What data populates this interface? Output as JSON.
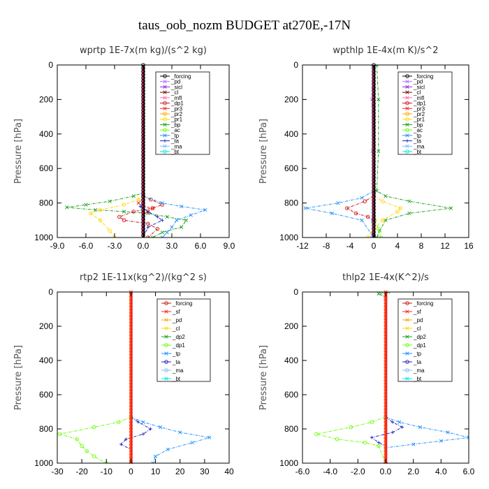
{
  "figure_title": "taus_oob_nozm  BUDGET at270E,-17N",
  "chart_data": [
    {
      "type": "line",
      "title": "wprtp  1E-7x(m kg)/(s^2 kg)",
      "ylabel": "Pressure [hPa]",
      "xlim": [
        -9,
        9
      ],
      "ylim": [
        1000,
        0
      ],
      "xticks": [
        "-9.0",
        "-6.0",
        "-3.0",
        "0.0",
        "3.0",
        "6.0",
        "9.0"
      ],
      "yticks": [
        "0",
        "200",
        "400",
        "600",
        "800",
        "1000"
      ],
      "legend": [
        "_forcing",
        "_pd",
        "_sicl",
        "_cl",
        "_mfl",
        "_dp1",
        "_pr3",
        "_pr2",
        "_pr1",
        "_bp",
        "_ac",
        "_tp",
        "_ta",
        "_ma",
        "_bt"
      ],
      "legend_colors": [
        "#000000",
        "#b070ff",
        "#8a2be2",
        "#800000",
        "#ff69b4",
        "#d01010",
        "#ff2020",
        "#ffa500",
        "#ffd700",
        "#1aa01a",
        "#66ff00",
        "#1e90ff",
        "#2020c0",
        "#7fb8ff",
        "#00e5e5"
      ],
      "series": [
        {
          "name": "_bp",
          "color": "#1aa01a",
          "marker": "x",
          "points": [
            [
              0,
              700
            ],
            [
              0,
              740
            ],
            [
              -1.0,
              760
            ],
            [
              -3.5,
              790
            ],
            [
              -6.0,
              810
            ],
            [
              -8.0,
              825
            ],
            [
              -5.0,
              840
            ],
            [
              -2.0,
              850
            ],
            [
              0.5,
              860
            ],
            [
              2.5,
              880
            ],
            [
              4.5,
              900
            ],
            [
              4.0,
              940
            ],
            [
              2.0,
              970
            ],
            [
              1.0,
              1000
            ]
          ]
        },
        {
          "name": "_pr1",
          "color": "#ffd700",
          "marker": "o",
          "points": [
            [
              0,
              750
            ],
            [
              -0.5,
              780
            ],
            [
              -2.0,
              810
            ],
            [
              -4.5,
              840
            ],
            [
              -5.5,
              860
            ],
            [
              -4.5,
              900
            ],
            [
              -3.5,
              960
            ],
            [
              -3.0,
              1000
            ]
          ]
        },
        {
          "name": "_dp1",
          "color": "#d01010",
          "marker": "o",
          "points": [
            [
              0,
              760
            ],
            [
              0.8,
              780
            ],
            [
              2.0,
              810
            ],
            [
              1.0,
              830
            ],
            [
              -1.0,
              850
            ],
            [
              -2.5,
              880
            ],
            [
              -2.0,
              900
            ],
            [
              0.5,
              920
            ],
            [
              1.5,
              950
            ],
            [
              0.5,
              1000
            ]
          ]
        },
        {
          "name": "_pr3",
          "color": "#ff2020",
          "marker": "x",
          "points": [
            [
              0,
              770
            ],
            [
              -0.5,
              800
            ],
            [
              0,
              820
            ],
            [
              1.0,
              830
            ],
            [
              0.5,
              850
            ],
            [
              0,
              870
            ]
          ]
        },
        {
          "name": "_ta",
          "color": "#2020c0",
          "marker": "+",
          "points": [
            [
              0,
              790
            ],
            [
              -0.3,
              820
            ],
            [
              0.5,
              850
            ],
            [
              1.5,
              880
            ],
            [
              2.0,
              900
            ],
            [
              0.5,
              940
            ],
            [
              0,
              1000
            ]
          ]
        },
        {
          "name": "_tp",
          "color": "#1e90ff",
          "marker": "x",
          "points": [
            [
              0,
              760
            ],
            [
              2.0,
              800
            ],
            [
              4.0,
              820
            ],
            [
              6.5,
              840
            ],
            [
              5.0,
              870
            ],
            [
              3.5,
              900
            ],
            [
              3.0,
              940
            ],
            [
              2.5,
              970
            ],
            [
              2.0,
              1000
            ]
          ]
        }
      ]
    },
    {
      "type": "line",
      "title": "wpthlp  1E-4x(m K)/s^2",
      "ylabel": "Pressure [hPa]",
      "xlim": [
        -12,
        16
      ],
      "ylim": [
        1000,
        0
      ],
      "xticks": [
        "-12",
        "-8",
        "-4",
        "0",
        "4",
        "8",
        "12",
        "16"
      ],
      "yticks": [
        "0",
        "200",
        "400",
        "600",
        "800",
        "1000"
      ],
      "legend": [
        "_forcing",
        "_pd",
        "_sicl",
        "_cl",
        "_mfl",
        "_dp1",
        "_pr3",
        "_pr2",
        "_pr1",
        "_bp",
        "_ac",
        "_tp",
        "_ta",
        "_ma",
        "_bt"
      ],
      "legend_colors": [
        "#000000",
        "#b070ff",
        "#8a2be2",
        "#800000",
        "#ff69b4",
        "#d01010",
        "#ff2020",
        "#ffa500",
        "#ffd700",
        "#1aa01a",
        "#66ff00",
        "#1e90ff",
        "#2020c0",
        "#7fb8ff",
        "#00e5e5"
      ],
      "series": [
        {
          "name": "_bp",
          "color": "#1aa01a",
          "marker": "x",
          "points": [
            [
              0.5,
              0
            ],
            [
              0.8,
              200
            ],
            [
              0.8,
              500
            ],
            [
              0.5,
              730
            ],
            [
              2.0,
              760
            ],
            [
              6.0,
              790
            ],
            [
              13.0,
              830
            ],
            [
              6.0,
              860
            ],
            [
              2.0,
              900
            ],
            [
              1.0,
              960
            ],
            [
              0.5,
              1000
            ]
          ]
        },
        {
          "name": "_tp",
          "color": "#1e90ff",
          "marker": "x",
          "points": [
            [
              0,
              730
            ],
            [
              -2.0,
              770
            ],
            [
              -6.0,
              800
            ],
            [
              -11.5,
              830
            ],
            [
              -7.0,
              860
            ],
            [
              -2.0,
              900
            ],
            [
              0,
              1000
            ]
          ]
        },
        {
          "name": "_dp1",
          "color": "#d01010",
          "marker": "o",
          "points": [
            [
              0,
              760
            ],
            [
              -1.5,
              790
            ],
            [
              -4.5,
              830
            ],
            [
              -3.0,
              860
            ],
            [
              -1.0,
              880
            ],
            [
              0,
              900
            ],
            [
              0,
              1000
            ]
          ]
        },
        {
          "name": "_pr1",
          "color": "#ffd700",
          "marker": "o",
          "points": [
            [
              0,
              760
            ],
            [
              1.5,
              790
            ],
            [
              4.5,
              830
            ],
            [
              4.0,
              850
            ],
            [
              1.5,
              900
            ],
            [
              0,
              950
            ],
            [
              -1.0,
              1000
            ]
          ]
        },
        {
          "name": "_ac",
          "color": "#66ff00",
          "marker": "o",
          "points": [
            [
              0.2,
              900
            ],
            [
              0.8,
              950
            ],
            [
              1.2,
              1000
            ]
          ]
        },
        {
          "name": "_pd",
          "color": "#b070ff",
          "marker": "x",
          "points": [
            [
              -0.2,
              0
            ],
            [
              -0.3,
              200
            ],
            [
              -0.2,
              500
            ],
            [
              -0.2,
              900
            ],
            [
              -0.3,
              1000
            ]
          ]
        }
      ]
    },
    {
      "type": "line",
      "title": "rtp2  1E-11x(kg^2)/(kg^2 s)",
      "ylabel": "Pressure [hPa]",
      "xlim": [
        -30,
        40
      ],
      "ylim": [
        1000,
        0
      ],
      "xticks": [
        "-30",
        "-20",
        "-10",
        "0",
        "10",
        "20",
        "30",
        "40"
      ],
      "yticks": [
        "0",
        "200",
        "400",
        "600",
        "800",
        "1000"
      ],
      "legend": [
        "_forcing",
        "_sf",
        "_pd",
        "_cl",
        "_dp2",
        "_dp1",
        "_tp",
        "_ta",
        "_ma",
        "_bt"
      ],
      "legend_colors": [
        "#d01010",
        "#ff2020",
        "#ffa500",
        "#ffd700",
        "#1aa01a",
        "#66ff00",
        "#1e90ff",
        "#2020c0",
        "#7fb8ff",
        "#00e5e5"
      ],
      "series": [
        {
          "name": "_dp1",
          "color": "#66ff00",
          "marker": "o",
          "points": [
            [
              0,
              730
            ],
            [
              -5.0,
              760
            ],
            [
              -15.0,
              790
            ],
            [
              -29.0,
              830
            ],
            [
              -22.0,
              860
            ],
            [
              -20.0,
              900
            ],
            [
              -18.0,
              930
            ],
            [
              -15.0,
              960
            ],
            [
              -10.0,
              1000
            ]
          ]
        },
        {
          "name": "_ta",
          "color": "#2020c0",
          "marker": "+",
          "points": [
            [
              0,
              730
            ],
            [
              3.0,
              760
            ],
            [
              8.0,
              800
            ],
            [
              5.0,
              830
            ],
            [
              -2.0,
              860
            ],
            [
              -4.0,
              890
            ],
            [
              0,
              920
            ],
            [
              0,
              1000
            ]
          ]
        },
        {
          "name": "_tp",
          "color": "#1e90ff",
          "marker": "x",
          "points": [
            [
              0,
              730
            ],
            [
              5.0,
              760
            ],
            [
              12.0,
              790
            ],
            [
              20.0,
              820
            ],
            [
              32.0,
              850
            ],
            [
              25.0,
              880
            ],
            [
              15.0,
              920
            ],
            [
              10.0,
              960
            ],
            [
              9.0,
              1000
            ]
          ]
        },
        {
          "name": "_forcing",
          "color": "#d01010",
          "marker": "o",
          "points": [
            [
              0,
              0
            ],
            [
              0,
              1000
            ]
          ]
        }
      ]
    },
    {
      "type": "line",
      "title": "thlp2  1E-4x(K^2)/s",
      "ylabel": "Pressure [hPa]",
      "xlim": [
        -6,
        6
      ],
      "ylim": [
        1000,
        0
      ],
      "xticks": [
        "-6.0",
        "-4.0",
        "-2.0",
        "0.0",
        "2.0",
        "4.0",
        "6.0"
      ],
      "yticks": [
        "0",
        "200",
        "400",
        "600",
        "800",
        "1000"
      ],
      "legend": [
        "_forcing",
        "_sf",
        "_pd",
        "_cl",
        "_dp2",
        "_dp1",
        "_tp",
        "_ta",
        "_ma",
        "_bt"
      ],
      "legend_colors": [
        "#d01010",
        "#ff2020",
        "#ffa500",
        "#ffd700",
        "#1aa01a",
        "#66ff00",
        "#1e90ff",
        "#2020c0",
        "#7fb8ff",
        "#00e5e5"
      ],
      "series": [
        {
          "name": "_dp1",
          "color": "#66ff00",
          "marker": "o",
          "points": [
            [
              0,
              730
            ],
            [
              -1.0,
              760
            ],
            [
              -2.5,
              790
            ],
            [
              -5.0,
              830
            ],
            [
              -3.5,
              860
            ],
            [
              -1.5,
              880
            ],
            [
              -0.5,
              900
            ],
            [
              0,
              1000
            ]
          ]
        },
        {
          "name": "_ta",
          "color": "#2020c0",
          "marker": "+",
          "points": [
            [
              0,
              730
            ],
            [
              0.5,
              760
            ],
            [
              1.2,
              790
            ],
            [
              0.5,
              820
            ],
            [
              -1.0,
              850
            ],
            [
              -0.5,
              880
            ],
            [
              0,
              900
            ],
            [
              0,
              1000
            ]
          ]
        },
        {
          "name": "_tp",
          "color": "#1e90ff",
          "marker": "x",
          "points": [
            [
              0,
              730
            ],
            [
              1.0,
              760
            ],
            [
              2.5,
              790
            ],
            [
              4.5,
              820
            ],
            [
              6.0,
              850
            ],
            [
              4.0,
              870
            ],
            [
              2.0,
              890
            ],
            [
              0,
              910
            ],
            [
              0,
              1000
            ]
          ]
        },
        {
          "name": "_dp2",
          "color": "#1aa01a",
          "marker": "x",
          "points": [
            [
              0.2,
              0
            ],
            [
              -0.5,
              10
            ],
            [
              0,
              30
            ]
          ]
        },
        {
          "name": "_forcing",
          "color": "#d01010",
          "marker": "o",
          "points": [
            [
              0,
              0
            ],
            [
              0,
              1000
            ]
          ]
        }
      ]
    }
  ]
}
